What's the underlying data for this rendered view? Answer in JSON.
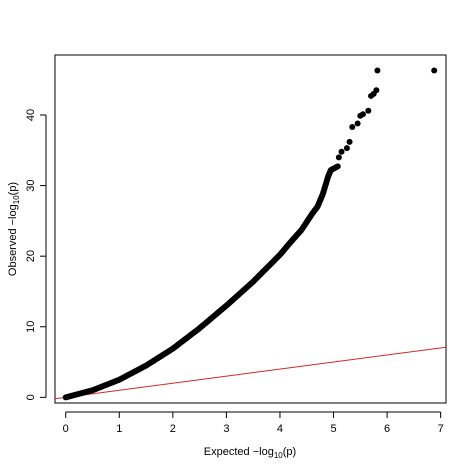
{
  "chart_data": {
    "type": "scatter",
    "xlabel": "Expected −log10(p)",
    "ylabel": "Observed −log10(p)",
    "xlim": [
      -0.2,
      7.1
    ],
    "ylim": [
      -0.8,
      48.5
    ],
    "xticks": [
      0,
      1,
      2,
      3,
      4,
      5,
      6,
      7
    ],
    "yticks": [
      0,
      10,
      20,
      30,
      40
    ],
    "grid": false,
    "reference_line": {
      "slope": 1,
      "intercept": 0,
      "color": "#d62728"
    },
    "curve_points": [
      [
        0,
        0
      ],
      [
        0.5,
        1.0
      ],
      [
        1,
        2.5
      ],
      [
        1.5,
        4.5
      ],
      [
        2,
        6.9
      ],
      [
        2.5,
        9.8
      ],
      [
        3,
        13.0
      ],
      [
        3.5,
        16.4
      ],
      [
        4,
        20.2
      ],
      [
        4.2,
        22.0
      ],
      [
        4.4,
        23.7
      ],
      [
        4.6,
        26.0
      ],
      [
        4.7,
        27.0
      ],
      [
        4.8,
        28.8
      ],
      [
        4.9,
        31.3
      ],
      [
        4.95,
        32.2
      ],
      [
        5.1,
        32.8
      ]
    ],
    "tail_points": [
      [
        5.1,
        34.0
      ],
      [
        5.15,
        34.8
      ],
      [
        5.25,
        35.3
      ],
      [
        5.3,
        36.2
      ],
      [
        5.35,
        38.3
      ],
      [
        5.45,
        38.8
      ],
      [
        5.5,
        39.9
      ],
      [
        5.55,
        40.1
      ],
      [
        5.65,
        40.6
      ],
      [
        5.7,
        42.7
      ],
      [
        5.75,
        43.0
      ],
      [
        5.8,
        43.5
      ],
      [
        5.82,
        46.3
      ],
      [
        6.88,
        46.3
      ]
    ],
    "point_color": "#000000"
  },
  "labels": {
    "x_main": "Expected −log",
    "x_sub": "10",
    "x_tail": "(p)",
    "y_main": "Observed −log",
    "y_sub": "10",
    "y_tail": "(p)"
  }
}
